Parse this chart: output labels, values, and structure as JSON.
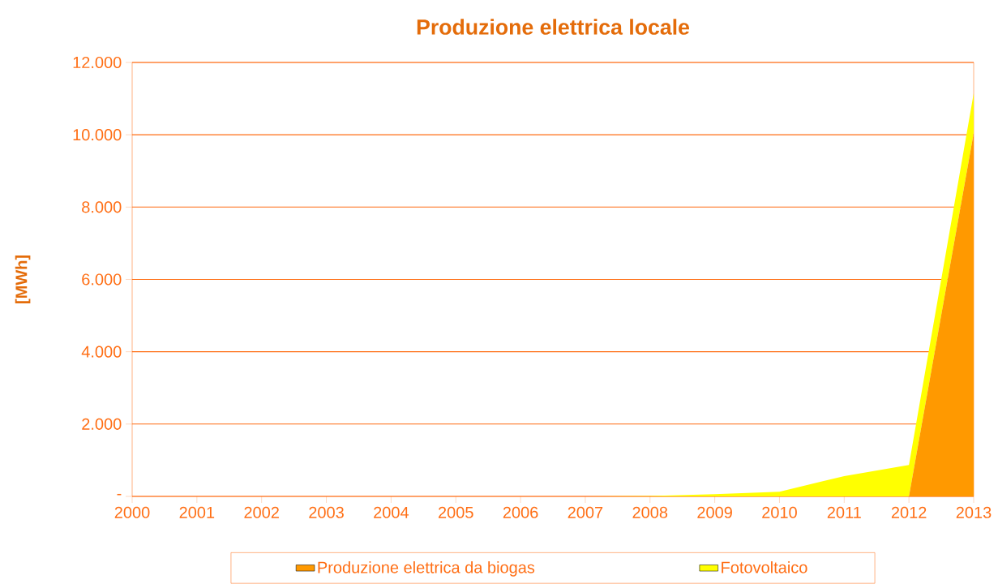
{
  "chart_data": {
    "type": "area",
    "title": "Produzione elettrica locale",
    "ylabel": "[MWh]",
    "categories": [
      "2000",
      "2001",
      "2002",
      "2003",
      "2004",
      "2005",
      "2006",
      "2007",
      "2008",
      "2009",
      "2010",
      "2011",
      "2012",
      "2013"
    ],
    "stacked": true,
    "series": [
      {
        "name": "Produzione elettrica da biogas",
        "color": "#ff9900",
        "values": [
          0,
          0,
          0,
          0,
          0,
          0,
          0,
          0,
          0,
          0,
          0,
          0,
          0,
          10050
        ]
      },
      {
        "name": "Fotovoltaico",
        "color": "#ffff00",
        "values": [
          0,
          0,
          0,
          0,
          0,
          0,
          0,
          0,
          10,
          60,
          130,
          560,
          870,
          1100
        ]
      }
    ],
    "ylim": [
      0,
      12000
    ],
    "yticks": [
      {
        "value": 0,
        "label": "-"
      },
      {
        "value": 2000,
        "label": "2.000"
      },
      {
        "value": 4000,
        "label": "4.000"
      },
      {
        "value": 6000,
        "label": "6.000"
      },
      {
        "value": 8000,
        "label": "8.000"
      },
      {
        "value": 10000,
        "label": "10.000"
      },
      {
        "value": 12000,
        "label": "12.000"
      }
    ],
    "grid": "y",
    "legend": "bottom"
  }
}
